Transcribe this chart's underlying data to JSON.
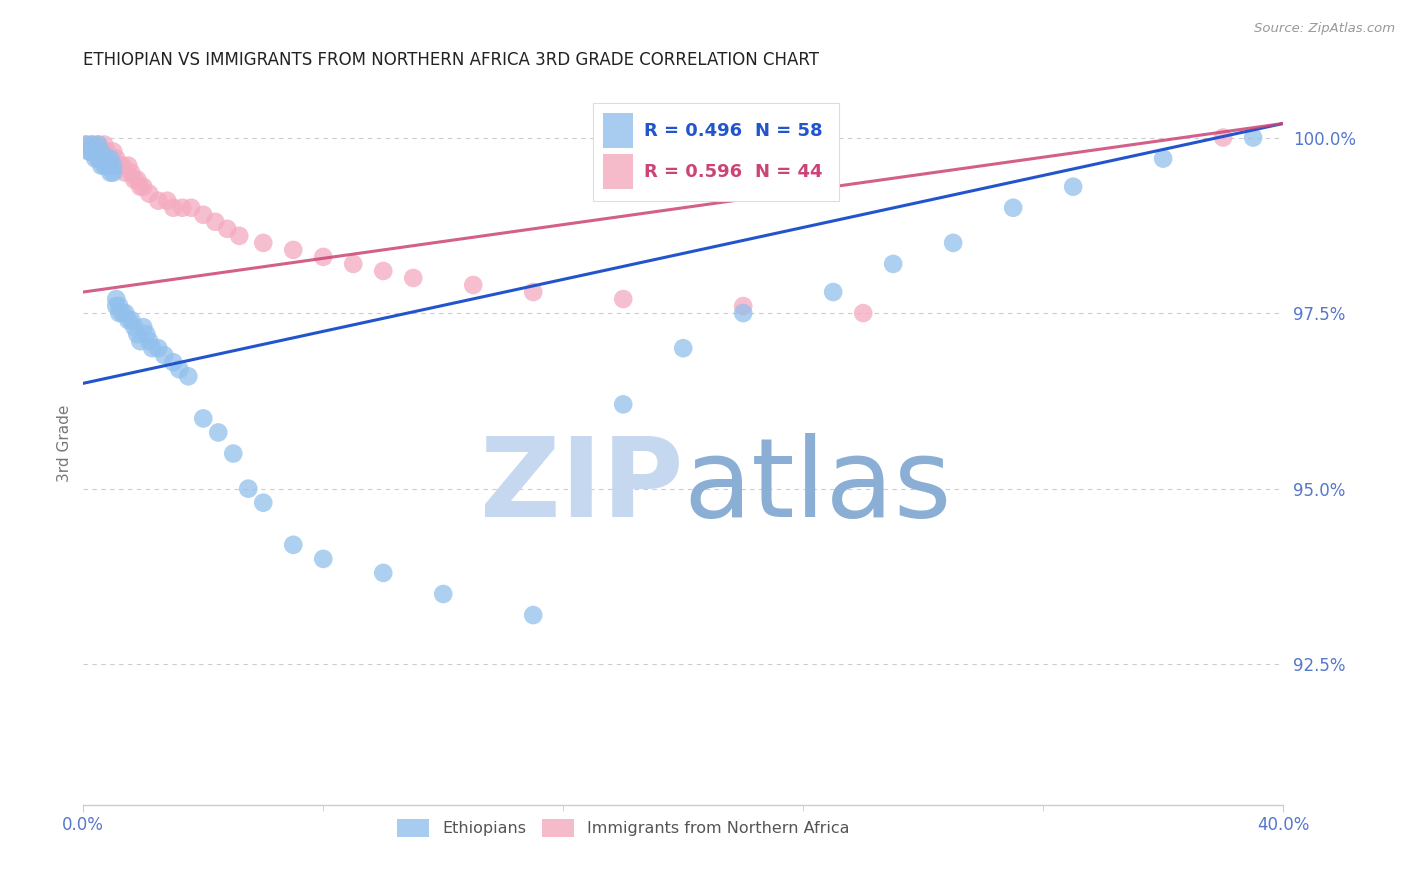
{
  "title": "ETHIOPIAN VS IMMIGRANTS FROM NORTHERN AFRICA 3RD GRADE CORRELATION CHART",
  "source": "Source: ZipAtlas.com",
  "ylabel": "3rd Grade",
  "ytick_labels": [
    "100.0%",
    "97.5%",
    "95.0%",
    "92.5%"
  ],
  "ytick_values": [
    1.0,
    0.975,
    0.95,
    0.925
  ],
  "legend_blue_r": "R = 0.496",
  "legend_blue_n": "N = 58",
  "legend_pink_r": "R = 0.596",
  "legend_pink_n": "N = 44",
  "blue_color": "#92C0EC",
  "pink_color": "#F4AABF",
  "blue_line_color": "#2255CC",
  "pink_line_color": "#CC4477",
  "title_color": "#222222",
  "axis_label_color": "#5577CC",
  "grid_color": "#CCCCCC",
  "watermark_zip_color": "#C5D8F0",
  "watermark_atlas_color": "#8BAED4",
  "xmin": 0.0,
  "xmax": 0.4,
  "ymin": 0.905,
  "ymax": 1.008,
  "blue_x": [
    0.001,
    0.002,
    0.003,
    0.003,
    0.004,
    0.004,
    0.005,
    0.005,
    0.006,
    0.006,
    0.007,
    0.007,
    0.008,
    0.008,
    0.009,
    0.009,
    0.01,
    0.01,
    0.011,
    0.011,
    0.012,
    0.012,
    0.013,
    0.014,
    0.015,
    0.016,
    0.017,
    0.018,
    0.019,
    0.02,
    0.021,
    0.022,
    0.023,
    0.025,
    0.027,
    0.03,
    0.032,
    0.035,
    0.04,
    0.045,
    0.05,
    0.055,
    0.06,
    0.07,
    0.08,
    0.1,
    0.12,
    0.15,
    0.18,
    0.2,
    0.22,
    0.25,
    0.27,
    0.29,
    0.31,
    0.33,
    0.36,
    0.39
  ],
  "blue_y": [
    0.999,
    0.998,
    0.999,
    0.998,
    0.998,
    0.997,
    0.999,
    0.997,
    0.998,
    0.996,
    0.997,
    0.996,
    0.997,
    0.996,
    0.997,
    0.995,
    0.996,
    0.995,
    0.977,
    0.976,
    0.976,
    0.975,
    0.975,
    0.975,
    0.974,
    0.974,
    0.973,
    0.972,
    0.971,
    0.973,
    0.972,
    0.971,
    0.97,
    0.97,
    0.969,
    0.968,
    0.967,
    0.966,
    0.96,
    0.958,
    0.955,
    0.95,
    0.948,
    0.942,
    0.94,
    0.938,
    0.935,
    0.932,
    0.962,
    0.97,
    0.975,
    0.978,
    0.982,
    0.985,
    0.99,
    0.993,
    0.997,
    1.0
  ],
  "pink_x": [
    0.001,
    0.002,
    0.003,
    0.004,
    0.005,
    0.005,
    0.006,
    0.007,
    0.007,
    0.008,
    0.009,
    0.01,
    0.011,
    0.012,
    0.013,
    0.014,
    0.015,
    0.016,
    0.017,
    0.018,
    0.019,
    0.02,
    0.022,
    0.025,
    0.028,
    0.03,
    0.033,
    0.036,
    0.04,
    0.044,
    0.048,
    0.052,
    0.06,
    0.07,
    0.08,
    0.09,
    0.1,
    0.11,
    0.13,
    0.15,
    0.18,
    0.22,
    0.26,
    0.38
  ],
  "pink_y": [
    0.999,
    0.998,
    0.999,
    0.998,
    0.999,
    0.997,
    0.998,
    0.999,
    0.997,
    0.998,
    0.997,
    0.998,
    0.997,
    0.996,
    0.996,
    0.995,
    0.996,
    0.995,
    0.994,
    0.994,
    0.993,
    0.993,
    0.992,
    0.991,
    0.991,
    0.99,
    0.99,
    0.99,
    0.989,
    0.988,
    0.987,
    0.986,
    0.985,
    0.984,
    0.983,
    0.982,
    0.981,
    0.98,
    0.979,
    0.978,
    0.977,
    0.976,
    0.975,
    1.0
  ],
  "blue_line_x": [
    0.0,
    0.4
  ],
  "blue_line_y": [
    0.965,
    1.002
  ],
  "pink_line_x": [
    0.0,
    0.4
  ],
  "pink_line_y": [
    0.978,
    1.002
  ]
}
